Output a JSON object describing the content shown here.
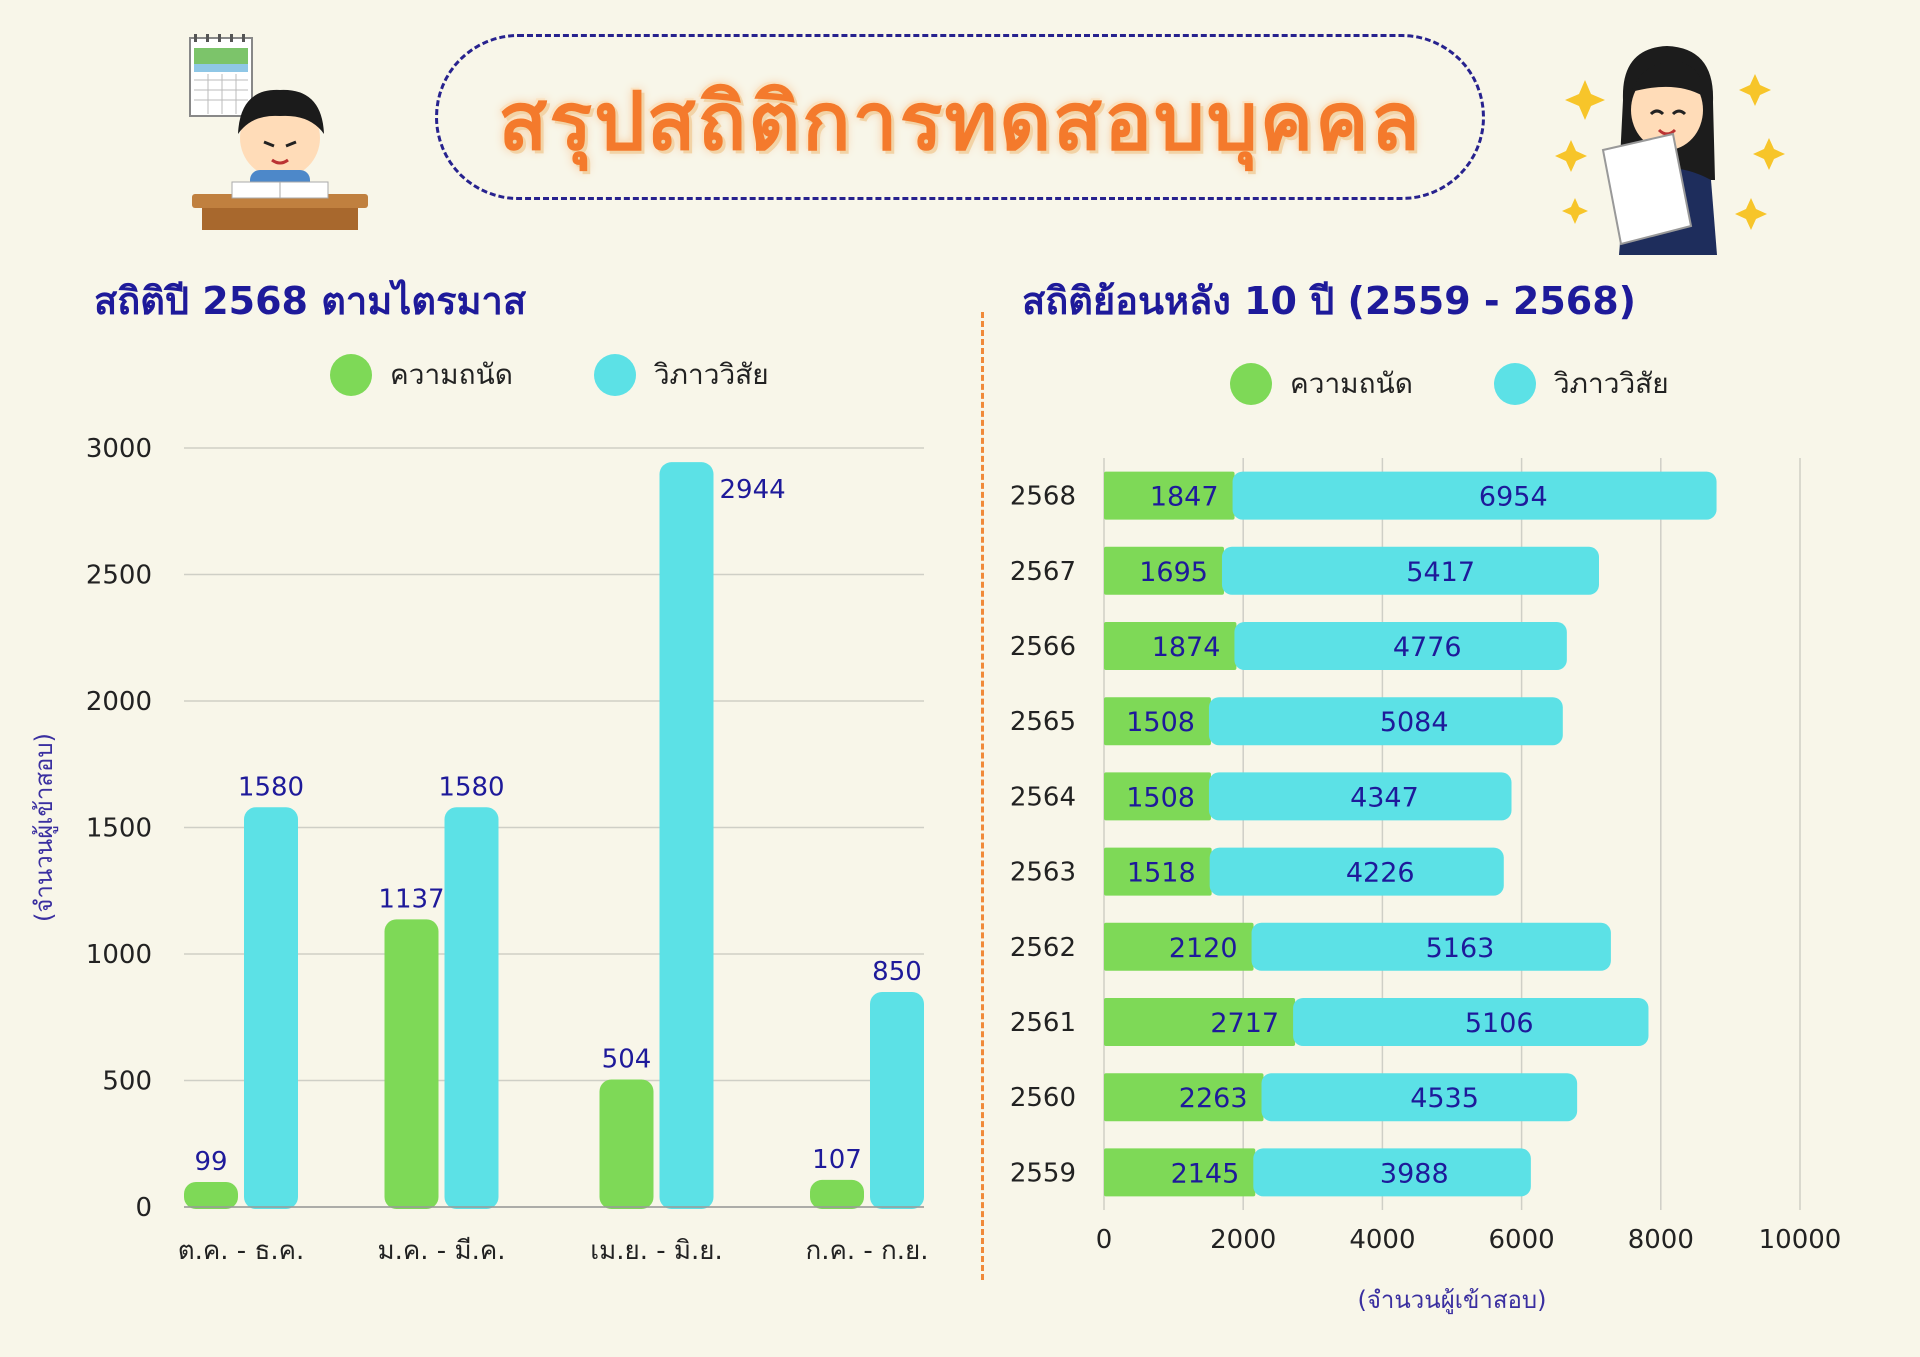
{
  "title": "สรุปสถิติการทดสอบบุคคล",
  "colors": {
    "aptitude": "#7ed957",
    "visual_arts": "#5ce1e6",
    "title_orange": "#f47a2c",
    "heading_blue": "#1e1a9a",
    "divider_orange": "#f08a3a"
  },
  "illustrations": {
    "left": "boy-studying-at-desk-with-calendar",
    "right": "girl-reading-paper-with-stars"
  },
  "left": {
    "heading": "สถิติปี 2568 ตามไตรมาส",
    "legend": [
      "ความถนัด",
      "วิภาววิสัย"
    ]
  },
  "right": {
    "heading": "สถิติย้อนหลัง 10 ปี (2559 - 2568)",
    "legend": [
      "ความถนัด",
      "วิภาววิสัย"
    ]
  },
  "chart_data": [
    {
      "type": "bar",
      "title": "สถิติปี 2568 ตามไตรมาส",
      "categories": [
        "ต.ค. - ธ.ค.",
        "ม.ค. - มี.ค.",
        "เม.ย. - มิ.ย.",
        "ก.ค. - ก.ย."
      ],
      "series": [
        {
          "name": "ความถนัด",
          "values": [
            99,
            1137,
            504,
            107
          ]
        },
        {
          "name": "วิภาววิสัย",
          "values": [
            1580,
            1580,
            2944,
            850
          ]
        }
      ],
      "ylabel": "(จำนวนผู้เข้าสอบ)",
      "ylim": [
        0,
        3000
      ],
      "yticks": [
        0,
        500,
        1000,
        1500,
        2000,
        2500,
        3000
      ],
      "grid": true,
      "legend": "top"
    },
    {
      "type": "bar",
      "orientation": "horizontal",
      "stacked": true,
      "title": "สถิติย้อนหลัง 10 ปี (2559 - 2568)",
      "categories": [
        "2568",
        "2567",
        "2566",
        "2565",
        "2564",
        "2563",
        "2562",
        "2561",
        "2560",
        "2559"
      ],
      "series": [
        {
          "name": "ความถนัด",
          "values": [
            1847,
            1695,
            1874,
            1508,
            1508,
            1518,
            2120,
            2717,
            2263,
            2145
          ]
        },
        {
          "name": "วิภาววิสัย",
          "values": [
            6954,
            5417,
            4776,
            5084,
            4347,
            4226,
            5163,
            5106,
            4535,
            3988
          ]
        }
      ],
      "xlabel": "(จำนวนผู้เข้าสอบ)",
      "xlim": [
        0,
        10000
      ],
      "xticks": [
        0,
        2000,
        4000,
        6000,
        8000,
        10000
      ],
      "grid": true,
      "legend": "top"
    }
  ]
}
